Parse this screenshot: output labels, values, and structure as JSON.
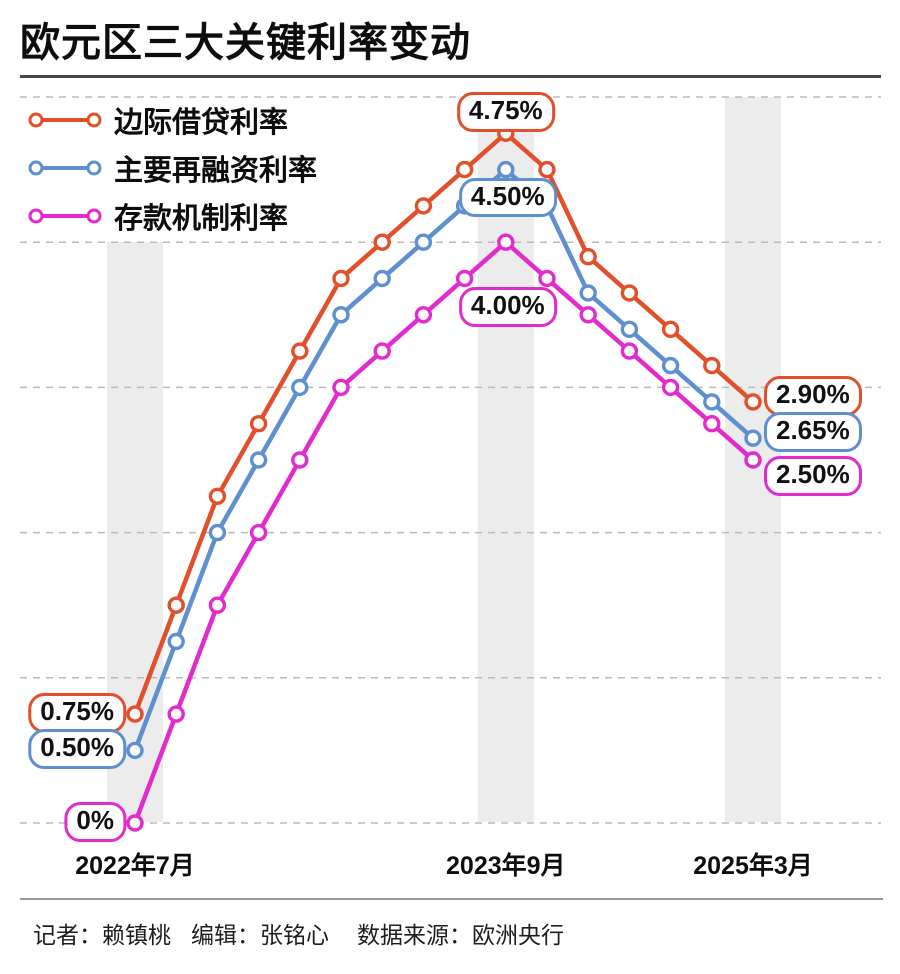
{
  "title": "欧元区三大关键利率变动",
  "footer": {
    "reporter": "记者：赖镇桃",
    "editor": "编辑：张铭心",
    "source": "数据来源：欧洲央行"
  },
  "colors": {
    "marginal_lending": "#E2502B",
    "main_refinancing": "#5E8FD0",
    "deposit_facility": "#E12BCE",
    "highlight_band": "#ECECEC",
    "gridline": "#BBBBBB",
    "ink": "#0D0D0D"
  },
  "chart_data": {
    "type": "line",
    "title": "欧元区三大关键利率变动",
    "num_points": 16,
    "ylim": [
      0,
      5
    ],
    "grid": "horizontal dashed lines every 1 percentage point, unlabeled",
    "legend_position": "top-left inside plot",
    "x_axis_labels": [
      {
        "label": "2022年7月",
        "point": 0
      },
      {
        "label": "2023年9月",
        "point": 9
      },
      {
        "label": "2025年3月",
        "point": 15
      }
    ],
    "series": [
      {
        "name": "边际借贷利率",
        "color": "#E2502B",
        "values": [
          0.75,
          1.5,
          2.25,
          2.75,
          3.25,
          3.75,
          4.0,
          4.25,
          4.5,
          4.75,
          4.5,
          3.9,
          3.65,
          3.4,
          3.15,
          2.9
        ]
      },
      {
        "name": "主要再融资利率",
        "color": "#5E8FD0",
        "values": [
          0.5,
          1.25,
          2.0,
          2.5,
          3.0,
          3.5,
          3.75,
          4.0,
          4.25,
          4.5,
          4.25,
          3.65,
          3.4,
          3.15,
          2.9,
          2.65
        ]
      },
      {
        "name": "存款机制利率",
        "color": "#E12BCE",
        "values": [
          0.0,
          0.75,
          1.5,
          2.0,
          2.5,
          3.0,
          3.25,
          3.5,
          3.75,
          4.0,
          3.75,
          3.5,
          3.25,
          3.0,
          2.75,
          2.5
        ]
      }
    ],
    "annotations": [
      {
        "label": "4.75%",
        "series": 0,
        "point": 9,
        "placement": "above"
      },
      {
        "label": "4.50%",
        "series": 1,
        "point": 9,
        "placement": "below"
      },
      {
        "label": "4.00%",
        "series": 2,
        "point": 9,
        "placement": "below-far"
      },
      {
        "label": "0.75%",
        "series": 0,
        "point": 0,
        "placement": "left"
      },
      {
        "label": "0.50%",
        "series": 1,
        "point": 0,
        "placement": "left"
      },
      {
        "label": "0%",
        "series": 2,
        "point": 0,
        "placement": "left"
      },
      {
        "label": "2.90%",
        "series": 0,
        "point": 15,
        "placement": "right"
      },
      {
        "label": "2.65%",
        "series": 1,
        "point": 15,
        "placement": "right"
      },
      {
        "label": "2.50%",
        "series": 2,
        "point": 15,
        "placement": "right-down"
      }
    ],
    "highlight_bands": {
      "points": [
        0,
        9,
        15
      ]
    }
  }
}
